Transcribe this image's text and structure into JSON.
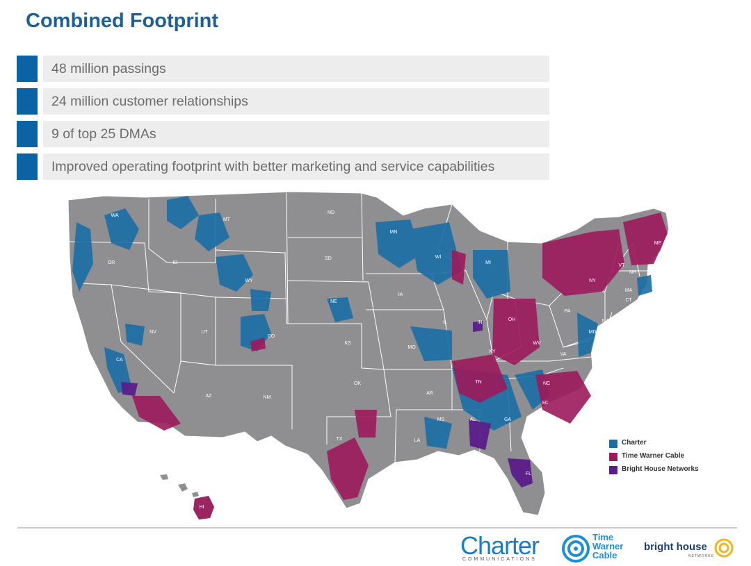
{
  "title": "Combined Footprint",
  "bullets": [
    "48 million passings",
    "24 million customer relationships",
    "9 of top 25 DMAs",
    "Improved operating footprint with better marketing and service capabilities"
  ],
  "map": {
    "state_labels": [
      "WA",
      "OR",
      "CA",
      "NV",
      "ID",
      "MT",
      "WY",
      "UT",
      "AZ",
      "CO",
      "NM",
      "ND",
      "SD",
      "NE",
      "KS",
      "OK",
      "TX",
      "MN",
      "IA",
      "MO",
      "AR",
      "LA",
      "WI",
      "IL",
      "MI",
      "IN",
      "OH",
      "KY",
      "TN",
      "MS",
      "AL",
      "GA",
      "FL",
      "SC",
      "NC",
      "VA",
      "WV",
      "PA",
      "NY",
      "VT",
      "NH",
      "ME",
      "MA",
      "CT",
      "NJ",
      "MD",
      "HI"
    ],
    "colors": {
      "land": "#8f8f91",
      "border": "#ffffff",
      "charter": "#1a6ea6",
      "twc": "#9c1a5c",
      "bright_house": "#5a1d8a"
    }
  },
  "legend": [
    {
      "label": "Charter",
      "color": "#1a6ea6"
    },
    {
      "label": "Time Warner Cable",
      "color": "#9c1a5c"
    },
    {
      "label": "Bright House Networks",
      "color": "#5a1d8a"
    }
  ],
  "logos": {
    "charter": {
      "word": "Charter",
      "sub": "COMMUNICATIONS"
    },
    "twc": {
      "line1": "Time",
      "line2": "Warner",
      "line3": "Cable"
    },
    "bright_house": {
      "word": "bright house",
      "sub": "NETWORKS"
    }
  }
}
